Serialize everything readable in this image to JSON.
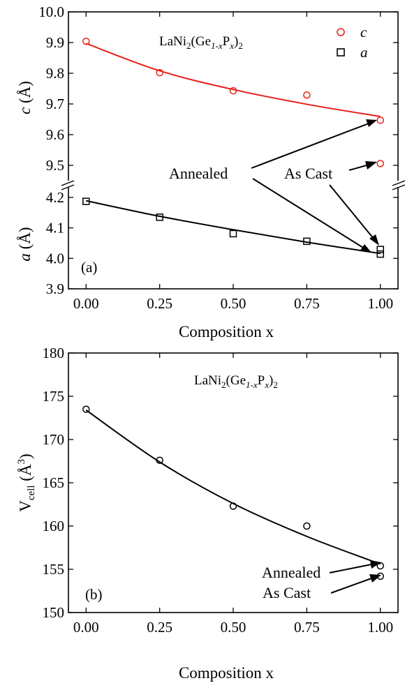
{
  "chart_data": [
    {
      "type": "scatter",
      "panel_label": "(a)",
      "inset_title": {
        "main": "LaNi",
        "s1": "2",
        "mid": "(Ge",
        "s2": "1-x",
        "mid2": "P",
        "s3": "x",
        "end": ")",
        "s4": "2"
      },
      "xlabel": "Composition  x",
      "xticks": [
        "0.00",
        "0.25",
        "0.50",
        "0.75",
        "1.00"
      ],
      "xlim": [
        -0.06,
        1.06
      ],
      "upper": {
        "ylabel_var": "c",
        "ylabel_unit": "(Å)",
        "ylim": [
          9.4,
          10.0
        ],
        "yticks": [
          "9.5",
          "9.6",
          "9.7",
          "9.8",
          "9.9",
          "10.0"
        ],
        "series": [
          {
            "name": "c",
            "color": "#e8201a",
            "marker": "circle",
            "points": [
              [
                0.0,
                9.904
              ],
              [
                0.25,
                9.802
              ],
              [
                0.5,
                9.743
              ],
              [
                0.75,
                9.729
              ],
              [
                1.0,
                9.647
              ],
              [
                1.0,
                9.506
              ]
            ],
            "fit": [
              [
                0.0,
                9.897
              ],
              [
                0.25,
                9.808
              ],
              [
                0.5,
                9.747
              ],
              [
                0.75,
                9.699
              ],
              [
                1.0,
                9.659
              ]
            ]
          }
        ]
      },
      "lower": {
        "ylabel_var": "a",
        "ylabel_unit": "(Å)",
        "ylim": [
          3.9,
          4.28
        ],
        "yticks": [
          "3.9",
          "4.0",
          "4.1",
          "4.2"
        ],
        "series": [
          {
            "name": "a",
            "color": "#000000",
            "marker": "square",
            "points": [
              [
                0.0,
                4.187
              ],
              [
                0.25,
                4.135
              ],
              [
                0.5,
                4.081
              ],
              [
                0.75,
                4.056
              ],
              [
                1.0,
                4.029
              ],
              [
                1.0,
                4.014
              ]
            ],
            "fit": [
              [
                0.0,
                4.189
              ],
              [
                0.25,
                4.138
              ],
              [
                0.5,
                4.094
              ],
              [
                0.75,
                4.053
              ],
              [
                1.0,
                4.016
              ]
            ]
          }
        ]
      },
      "annotations": [
        "Annealed",
        "As Cast"
      ]
    },
    {
      "type": "scatter",
      "panel_label": "(b)",
      "inset_title": {
        "main": "LaNi",
        "s1": "2",
        "mid": "(Ge",
        "s2": "1-x",
        "mid2": "P",
        "s3": "x",
        "end": ")",
        "s4": "2"
      },
      "xlabel": "Composition  x",
      "ylabel": {
        "main": "V",
        "sub": "cell",
        "unit": "(Å",
        "sup": "3",
        "close": ")"
      },
      "xticks": [
        "0.00",
        "0.25",
        "0.50",
        "0.75",
        "1.00"
      ],
      "yticks": [
        "150",
        "155",
        "160",
        "165",
        "170",
        "175",
        "180"
      ],
      "xlim": [
        -0.06,
        1.06
      ],
      "ylim": [
        150,
        180
      ],
      "series": [
        {
          "name": "V_cell",
          "color": "#000000",
          "marker": "circle",
          "points": [
            [
              0.0,
              173.5
            ],
            [
              0.25,
              167.6
            ],
            [
              0.5,
              162.3
            ],
            [
              0.75,
              160.0
            ],
            [
              1.0,
              155.4
            ],
            [
              1.0,
              154.2
            ]
          ],
          "fit": [
            [
              0.0,
              173.4
            ],
            [
              0.25,
              167.4
            ],
            [
              0.5,
              162.6
            ],
            [
              0.75,
              158.8
            ],
            [
              1.0,
              155.6
            ]
          ]
        }
      ],
      "annotations": [
        "Annealed",
        "As Cast"
      ]
    }
  ]
}
